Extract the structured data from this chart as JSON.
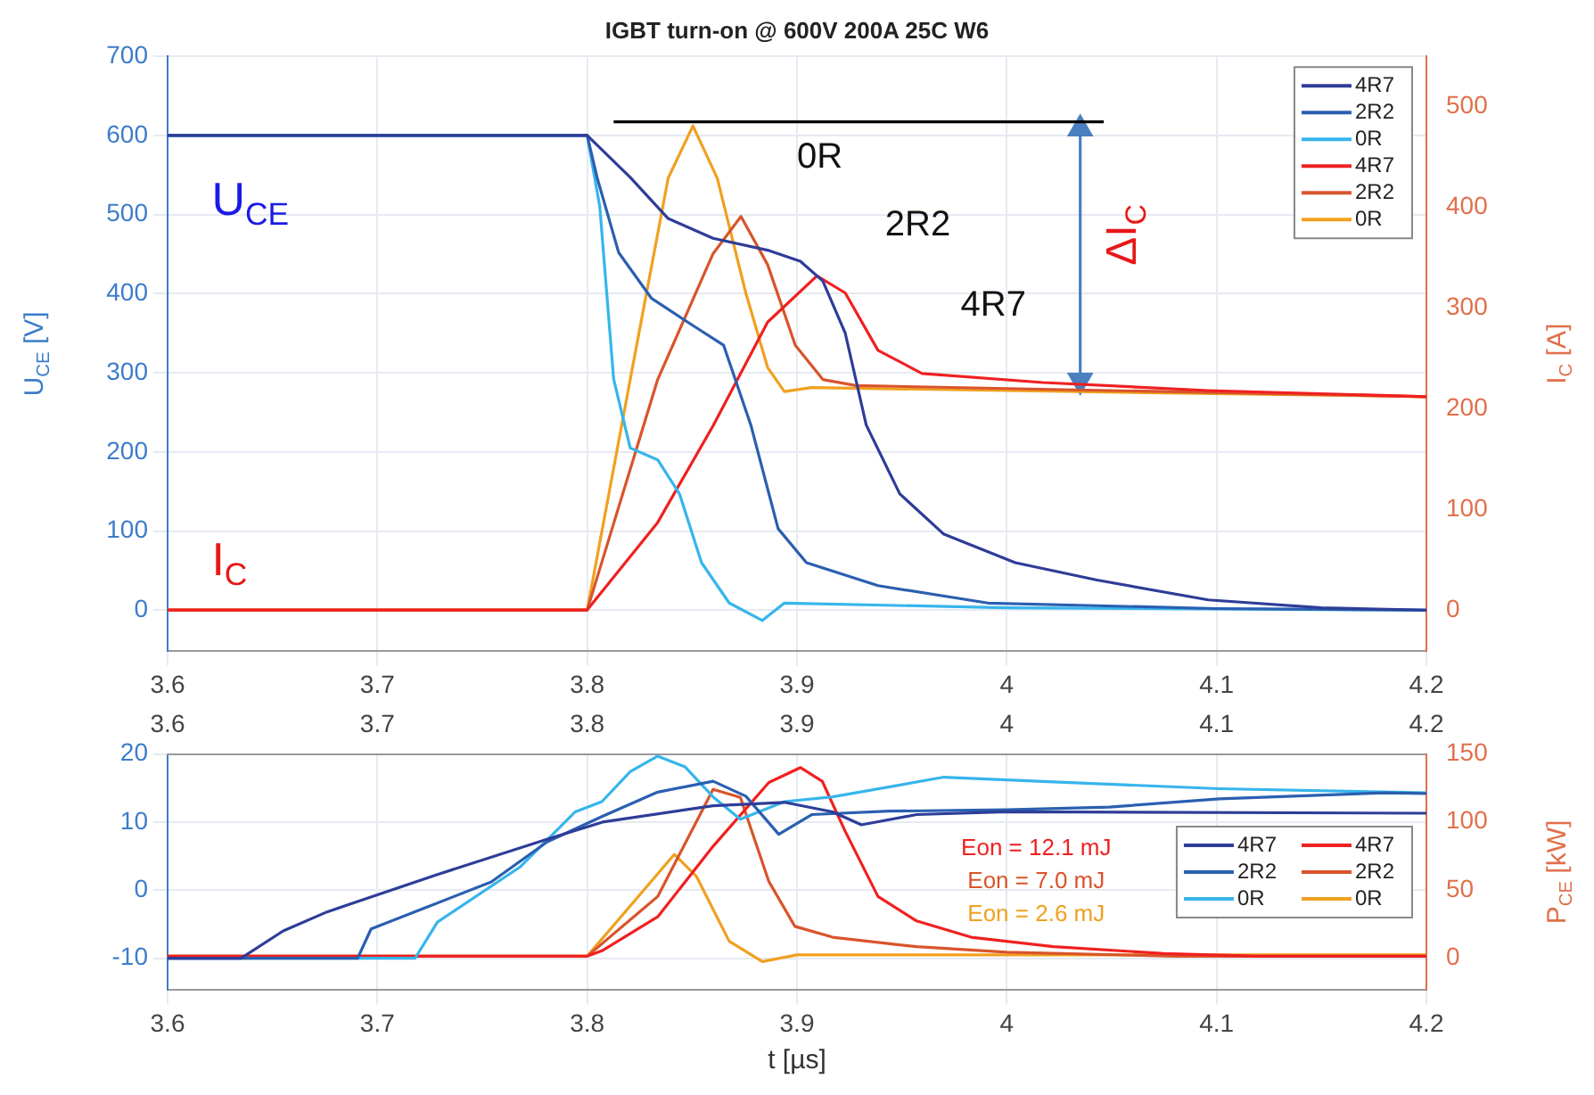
{
  "chart_data": [
    {
      "type": "line",
      "title": "IGBT turn-on @ 600V 200A 25C W6",
      "ylabel": "U$_{CE}$ [V]",
      "y2label": "I$_{C}$ [A]",
      "xlim": [
        3.6,
        4.2
      ],
      "xticks": [
        3.6,
        3.7,
        3.8,
        3.9,
        4,
        4.1,
        4.2
      ],
      "ylim": [
        -52,
        700
      ],
      "yticks": [
        0,
        100,
        200,
        300,
        400,
        500,
        600,
        700
      ],
      "y2lim": [
        -41,
        550
      ],
      "y2ticks": [
        0,
        100,
        200,
        300,
        400,
        500
      ],
      "grid": true,
      "legend": "top right",
      "marker": "none",
      "line_style": "solid",
      "annotations": [
        "U$_{CE}$",
        "I$_{C}$",
        "0R",
        "2R2",
        "4R7",
        "ΔI$_{C}$"
      ],
      "series": [
        {
          "name": "4R7",
          "color": "#2e3d98",
          "x": [
            3.6,
            3.8,
            3.8205,
            3.8386,
            3.86,
            3.886,
            3.9016,
            3.9123,
            3.923,
            3.933,
            3.949,
            3.97,
            4.004,
            4.043,
            4.096,
            4.15,
            4.2
          ],
          "values": [
            600,
            600,
            547,
            495,
            470,
            455,
            441,
            416,
            350,
            234,
            147,
            96,
            60,
            38,
            13,
            3,
            0
          ]
        },
        {
          "name": "2R2",
          "color": "#2a5fb0",
          "x": [
            3.6,
            3.8,
            3.8047,
            3.815,
            3.8307,
            3.852,
            3.865,
            3.878,
            3.891,
            3.9045,
            3.9386,
            3.991,
            4.1,
            4.2
          ],
          "values": [
            600,
            600,
            547,
            452,
            394,
            357,
            335,
            234,
            103,
            60,
            31,
            9,
            2,
            0
          ]
        },
        {
          "name": "0R",
          "color": "#36b5ec",
          "x": [
            3.6,
            3.8,
            3.806,
            3.8126,
            3.8205,
            3.8336,
            3.844,
            3.8545,
            3.8677,
            3.8835,
            3.894,
            4.0,
            4.2
          ],
          "values": [
            600,
            600,
            510,
            292,
            205,
            190,
            147,
            60,
            9,
            -13,
            9,
            3,
            0
          ]
        },
        {
          "name": "4R7",
          "color": "#f02020",
          "axis": "y2",
          "x": [
            3.6,
            3.8,
            3.8336,
            3.86,
            3.886,
            3.9095,
            3.923,
            3.9386,
            3.9596,
            4.0173,
            4.096,
            4.2
          ],
          "values": [
            0,
            0,
            87,
            183,
            286,
            332,
            315,
            258,
            235,
            226,
            218,
            212
          ]
        },
        {
          "name": "2R2",
          "color": "#d9542b",
          "axis": "y2",
          "x": [
            3.6,
            3.8,
            3.8336,
            3.86,
            3.8733,
            3.886,
            3.8992,
            3.9123,
            3.928,
            4.0,
            4.2
          ],
          "values": [
            0,
            0,
            229,
            354,
            391,
            343,
            263,
            229,
            223,
            220,
            212
          ]
        },
        {
          "name": "0R",
          "color": "#f0a020",
          "axis": "y2",
          "x": [
            3.6,
            3.8,
            3.8205,
            3.8386,
            3.8504,
            3.862,
            3.8756,
            3.886,
            3.894,
            3.907,
            4.0,
            4.2
          ],
          "values": [
            0,
            0,
            229,
            429,
            481,
            429,
            315,
            241,
            217,
            221,
            218,
            212
          ]
        },
        {
          "color": "#000000",
          "axis": "y2",
          "x": [
            3.8126,
            4.0462
          ],
          "values": [
            485,
            485
          ]
        },
        {
          "color": "#4a7fc0",
          "axis": "y2",
          "marker": "triangle",
          "x": [
            4.035,
            4.035
          ],
          "values": [
            478,
            228
          ]
        }
      ]
    },
    {
      "type": "line",
      "xlabel": "t [µs]",
      "y2label": "P$_{CE}$ [kW]",
      "xlim": [
        3.6,
        4.2
      ],
      "xticks": [
        3.6,
        3.7,
        3.8,
        3.9,
        4,
        4.1,
        4.2
      ],
      "x2lim": [
        3.6,
        4.2
      ],
      "x2ticks": [
        3.6,
        3.7,
        3.8,
        3.9,
        4,
        4.1,
        4.2
      ],
      "ylim": [
        -14.7,
        20
      ],
      "yticks": [
        -10,
        0,
        10,
        20
      ],
      "y2lim": [
        -24,
        150
      ],
      "y2ticks": [
        0,
        50,
        100,
        150
      ],
      "grid": true,
      "legend": "right",
      "marker": "none",
      "line_style": "solid",
      "annotations": [
        "Eon = 12.1 mJ",
        "Eon = 7.0 mJ",
        "Eon = 2.6 mJ"
      ],
      "series": [
        {
          "name": "4R7",
          "color": "#2e3d98",
          "x": [
            3.6,
            3.635,
            3.6551,
            3.676,
            3.7286,
            3.7811,
            3.8073,
            3.86,
            3.894,
            3.917,
            3.9307,
            3.957,
            4.0,
            4.2
          ],
          "values": [
            -10,
            -10,
            -6,
            -3.2,
            2.3,
            7.5,
            10,
            12.4,
            12.9,
            11.5,
            9.6,
            11.1,
            11.5,
            11.3
          ]
        },
        {
          "name": "2R2",
          "color": "#2a5fb0",
          "x": [
            3.6,
            3.6906,
            3.697,
            3.7543,
            3.781,
            3.807,
            3.8336,
            3.86,
            3.8756,
            3.8913,
            3.907,
            3.9438,
            4.0,
            4.0488,
            4.1013,
            4.18,
            4.2
          ],
          "values": [
            -10,
            -10,
            -5.7,
            1.2,
            7.1,
            10.8,
            14.4,
            16,
            13.8,
            8.2,
            11.1,
            11.6,
            11.8,
            12.2,
            13.4,
            14.3,
            14.2
          ]
        },
        {
          "name": "0R",
          "color": "#36b5ec",
          "x": [
            3.6,
            3.718,
            3.7286,
            3.768,
            3.7943,
            3.807,
            3.8205,
            3.8336,
            3.8467,
            3.86,
            3.873,
            3.894,
            3.917,
            3.97,
            4.0223,
            4.1013,
            4.2
          ],
          "values": [
            -10,
            -10,
            -4.7,
            3.4,
            11.5,
            13,
            17.4,
            19.7,
            18.1,
            13.7,
            10.4,
            13,
            13.7,
            16.6,
            15.9,
            14.9,
            14.3
          ]
        },
        {
          "name": "4R7",
          "color": "#f02020",
          "axis": "y2",
          "x": [
            3.6,
            3.8,
            3.807,
            3.8336,
            3.86,
            3.8866,
            3.9017,
            3.912,
            3.923,
            3.9386,
            3.957,
            3.983,
            4.0223,
            4.0748,
            4.12,
            4.2
          ],
          "values": [
            1,
            1,
            5,
            30,
            82,
            129,
            140,
            130,
            93,
            45,
            27,
            15,
            8,
            3,
            1,
            1
          ]
        },
        {
          "name": "2R2",
          "color": "#d9542b",
          "axis": "y2",
          "x": [
            3.6,
            3.8,
            3.8336,
            3.86,
            3.873,
            3.8866,
            3.899,
            3.917,
            3.957,
            4.0,
            4.08,
            4.2
          ],
          "values": [
            1,
            1,
            45,
            124,
            118,
            56,
            23,
            15,
            8,
            4,
            1,
            1
          ]
        },
        {
          "name": "0R",
          "color": "#f0a020",
          "axis": "y2",
          "x": [
            3.6,
            3.8,
            3.8205,
            3.8415,
            3.852,
            3.8677,
            3.8835,
            3.9,
            4.2
          ],
          "values": [
            1,
            1,
            38,
            76,
            60,
            12,
            -3,
            2,
            2
          ]
        }
      ]
    }
  ]
}
